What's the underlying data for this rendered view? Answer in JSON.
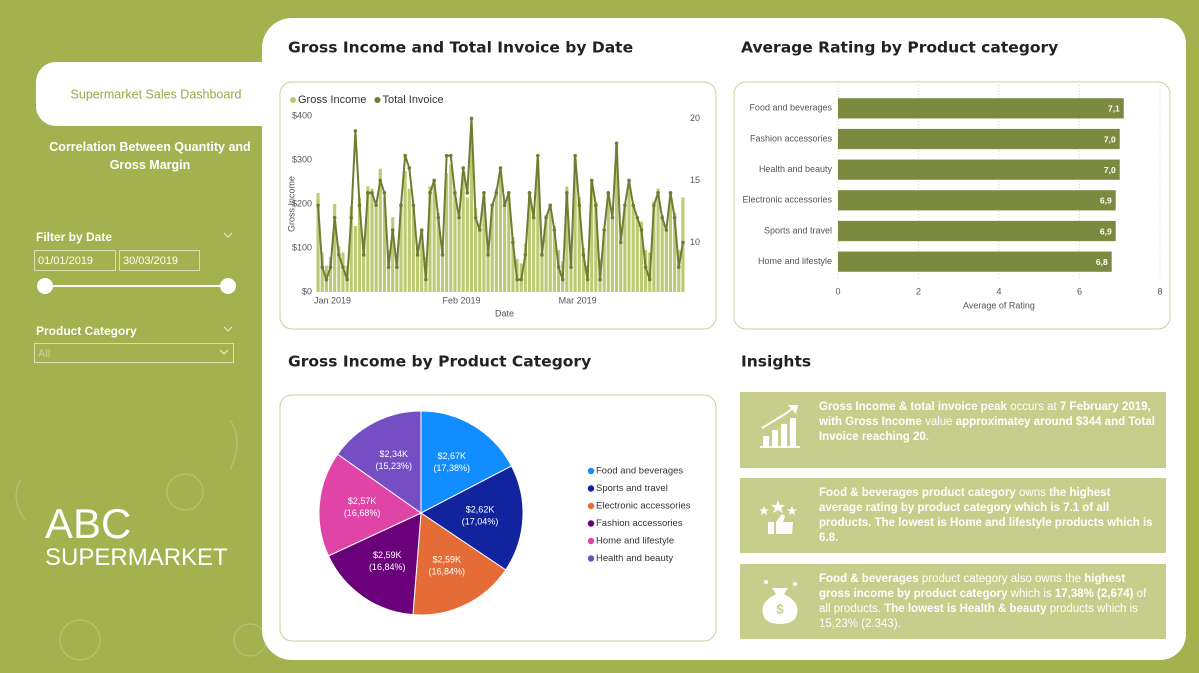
{
  "sidebar": {
    "title": "Supermarket Sales Dashboard",
    "nav": "Correlation Between Quantity and Gross Margin",
    "date_filter": {
      "label": "Filter by Date",
      "start": "01/01/2019",
      "end": "30/03/2019"
    },
    "category_filter": {
      "label": "Product Category",
      "value": "All"
    },
    "brand": {
      "line1": "ABC",
      "line2": "SUPERMARKET"
    }
  },
  "chart_data": [
    {
      "type": "combo",
      "title": "Gross Income and Total Invoice by Date",
      "xlabel": "Date",
      "ylabel": "Gross Income",
      "categories": [
        "Jan 2019",
        null,
        null,
        null,
        null,
        null,
        null,
        null,
        null,
        null,
        null,
        null,
        null,
        null,
        null,
        null,
        null,
        null,
        null,
        null,
        null,
        null,
        null,
        null,
        null,
        null,
        null,
        null,
        null,
        null,
        null,
        "Feb 2019",
        null,
        null,
        null,
        null,
        null,
        null,
        null,
        null,
        null,
        null,
        null,
        null,
        null,
        null,
        null,
        null,
        null,
        null,
        null,
        null,
        null,
        null,
        null,
        null,
        null,
        null,
        null,
        "Mar 2019",
        null,
        null,
        null,
        null,
        null,
        null,
        null,
        null,
        null,
        null,
        null,
        null,
        null,
        null,
        null,
        null,
        null,
        null,
        null,
        null,
        null,
        null,
        null,
        null,
        null,
        null,
        null,
        null,
        null
      ],
      "series": [
        {
          "name": "Gross Income",
          "mark": "bar",
          "color": "#bccb73",
          "values": [
            225,
            90,
            60,
            80,
            200,
            105,
            90,
            60,
            195,
            150,
            215,
            125,
            240,
            235,
            200,
            280,
            215,
            95,
            170,
            90,
            200,
            275,
            235,
            200,
            100,
            140,
            80,
            240,
            245,
            180,
            100,
            270,
            290,
            230,
            175,
            260,
            215,
            344,
            190,
            145,
            220,
            100,
            200,
            235,
            265,
            205,
            215,
            125,
            75,
            65,
            110,
            225,
            185,
            300,
            90,
            175,
            195,
            150,
            95,
            70,
            240,
            85,
            305,
            215,
            100,
            60,
            250,
            205,
            75,
            140,
            225,
            165,
            335,
            120,
            195,
            245,
            200,
            170,
            160,
            95,
            90,
            205,
            235,
            175,
            145,
            225,
            180,
            95,
            215
          ]
        },
        {
          "name": "Total Invoice",
          "mark": "line",
          "axis": "y2",
          "color": "#6f7c33",
          "values": [
            13,
            8,
            7,
            8,
            12,
            9,
            8,
            7,
            12,
            19,
            13,
            9,
            14,
            14,
            13,
            15,
            14,
            8,
            11,
            8,
            13,
            17,
            16,
            13,
            9,
            11,
            7,
            14,
            15,
            12,
            9,
            17,
            17,
            14,
            12,
            16,
            14,
            20,
            12,
            11,
            14,
            9,
            13,
            14,
            16,
            13,
            14,
            10,
            7,
            7,
            9,
            14,
            12,
            17,
            9,
            12,
            13,
            11,
            8,
            7,
            14,
            8,
            17,
            13,
            9,
            7,
            15,
            13,
            7,
            11,
            14,
            12,
            18,
            10,
            13,
            15,
            13,
            12,
            11,
            8,
            7,
            13,
            14,
            12,
            11,
            14,
            12,
            8,
            10
          ]
        }
      ],
      "ylim": [
        0,
        400
      ],
      "yticks": [
        {
          "value": 0,
          "label": "$0"
        },
        {
          "value": 100,
          "label": "$100"
        },
        {
          "value": 200,
          "label": "$200"
        },
        {
          "value": 300,
          "label": "$300"
        },
        {
          "value": 400,
          "label": "$400"
        }
      ],
      "y2lim": [
        6,
        20.2
      ],
      "y2ticks": [
        10,
        15,
        20
      ]
    },
    {
      "type": "bar",
      "orientation": "horizontal",
      "title": "Average Rating by Product category",
      "xlabel": "Average of Rating",
      "categories": [
        "Food and beverages",
        "Fashion accessories",
        "Health and beauty",
        "Electronic accessories",
        "Sports and travel",
        "Home and lifestyle"
      ],
      "values": [
        7.1,
        7.0,
        7.0,
        6.9,
        6.9,
        6.8
      ],
      "value_labels": [
        "7,1",
        "7,0",
        "7,0",
        "6,9",
        "6,9",
        "6,8"
      ],
      "color": "#7b8a3e",
      "xlim": [
        0,
        8
      ],
      "xticks": [
        0,
        2,
        4,
        6,
        8
      ],
      "grid": true
    },
    {
      "type": "pie",
      "title": "Gross Income by Product Category",
      "categories": [
        "Food and beverages",
        "Sports and travel",
        "Electronic accessories",
        "Fashion accessories",
        "Home and lifestyle",
        "Health and beauty"
      ],
      "values": [
        17.38,
        17.04,
        16.84,
        16.84,
        16.68,
        15.23
      ],
      "value_labels": [
        "(17,38%)",
        "(17,04%)",
        "(16,84%)",
        "(16,84%)",
        "(16,68%)",
        "(15,23%)"
      ],
      "amounts": [
        2670,
        2620,
        2590,
        2590,
        2570,
        2340
      ],
      "amount_labels": [
        "$2,67K",
        "$2,62K",
        "$2,59K",
        "$2,59K",
        "$2,57K",
        "$2,34K"
      ],
      "colors": [
        "#118dff",
        "#12239e",
        "#e66c37",
        "#6b007b",
        "#e044a7",
        "#744ec2"
      ]
    }
  ],
  "insights": {
    "title": "Insights",
    "items": [
      {
        "segments": [
          {
            "text": "Gross Income & total invoice peak ",
            "bold": true
          },
          {
            "text": "occurs at ",
            "bold": false
          },
          {
            "text": "7 February 2019, with Gross Income ",
            "bold": true
          },
          {
            "text": "value ",
            "bold": false
          },
          {
            "text": "approximatey around $344 and Total Invoice reaching 20.",
            "bold": true
          }
        ]
      },
      {
        "segments": [
          {
            "text": "Food & beverages product category ",
            "bold": true
          },
          {
            "text": "owns ",
            "bold": false
          },
          {
            "text": "the highest average rating by product category which is 7.1 of all products. The lowest is Home and lifestyle products which is 6.8.",
            "bold": true
          }
        ]
      },
      {
        "segments": [
          {
            "text": "Food & beverages ",
            "bold": true
          },
          {
            "text": "product category also owns the ",
            "bold": false
          },
          {
            "text": "highest gross income by product category ",
            "bold": true
          },
          {
            "text": "which is ",
            "bold": false
          },
          {
            "text": "17,38% (2,674) ",
            "bold": true
          },
          {
            "text": "of all products. ",
            "bold": false
          },
          {
            "text": "The lowest is Health & beauty ",
            "bold": true
          },
          {
            "text": "products which is 15,23% (2.343).",
            "bold": false
          }
        ]
      }
    ]
  }
}
